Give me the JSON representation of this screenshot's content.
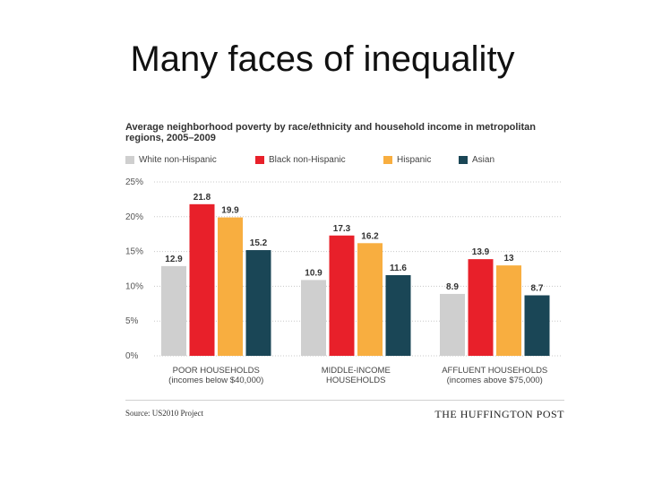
{
  "slide": {
    "title": "Many faces of inequality"
  },
  "chart_data": {
    "type": "bar",
    "title": "Average neighborhood poverty by race/ethnicity and household income in metropolitan regions, 2005–2009",
    "categories": [
      [
        "POOR HOUSEHOLDS",
        "(incomes below $40,000)"
      ],
      [
        "MIDDLE-INCOME",
        "HOUSEHOLDS"
      ],
      [
        "AFFLUENT HOUSEHOLDS",
        "(incomes above $75,000)"
      ]
    ],
    "series": [
      {
        "name": "White non-Hispanic",
        "color": "#cfcfcf",
        "values": [
          12.9,
          10.9,
          8.9
        ]
      },
      {
        "name": "Black non-Hispanic",
        "color": "#e8202a",
        "values": [
          21.8,
          17.3,
          13.9
        ]
      },
      {
        "name": "Hispanic",
        "color": "#f8ae40",
        "values": [
          19.9,
          16.2,
          13
        ]
      },
      {
        "name": "Asian",
        "color": "#1a4656",
        "values": [
          15.2,
          11.6,
          8.7
        ]
      }
    ],
    "value_labels": [
      [
        "12.9",
        "10.9",
        "8.9"
      ],
      [
        "21.8",
        "17.3",
        "13.9"
      ],
      [
        "19.9",
        "16.2",
        "13"
      ],
      [
        "15.2",
        "11.6",
        "8.7"
      ]
    ],
    "ylim": [
      0,
      25
    ],
    "yticks": [
      0,
      5,
      10,
      15,
      20,
      25
    ],
    "ytick_labels": [
      "0%",
      "5%",
      "10%",
      "15%",
      "20%",
      "25%"
    ],
    "grid": true,
    "legend_position": "top"
  },
  "footer": {
    "source": "Source: US2010 Project",
    "brand": "THE HUFFINGTON POST"
  }
}
